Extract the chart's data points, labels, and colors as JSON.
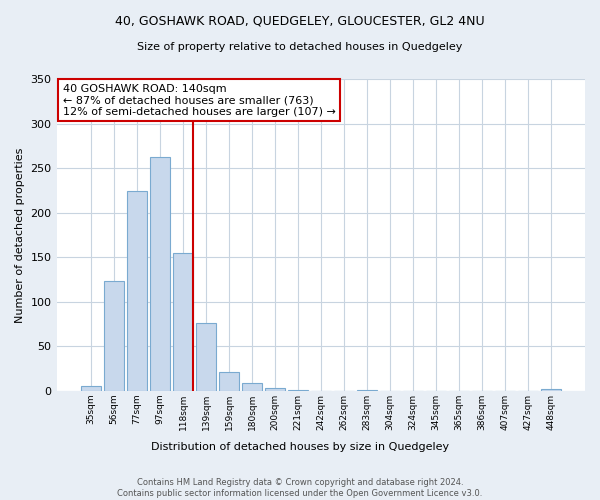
{
  "title": "40, GOSHAWK ROAD, QUEDGELEY, GLOUCESTER, GL2 4NU",
  "subtitle": "Size of property relative to detached houses in Quedgeley",
  "xlabel": "Distribution of detached houses by size in Quedgeley",
  "ylabel": "Number of detached properties",
  "bar_labels": [
    "35sqm",
    "56sqm",
    "77sqm",
    "97sqm",
    "118sqm",
    "139sqm",
    "159sqm",
    "180sqm",
    "200sqm",
    "221sqm",
    "242sqm",
    "262sqm",
    "283sqm",
    "304sqm",
    "324sqm",
    "345sqm",
    "365sqm",
    "386sqm",
    "407sqm",
    "427sqm",
    "448sqm"
  ],
  "bar_values": [
    6,
    123,
    224,
    262,
    155,
    76,
    21,
    9,
    3,
    1,
    0,
    0,
    1,
    0,
    0,
    0,
    0,
    0,
    0,
    0,
    2
  ],
  "bar_facecolor": "#c8d8ec",
  "bar_edgecolor": "#7aaad0",
  "vline_color": "#cc0000",
  "annotation_text": "40 GOSHAWK ROAD: 140sqm\n← 87% of detached houses are smaller (763)\n12% of semi-detached houses are larger (107) →",
  "annotation_box_facecolor": "#ffffff",
  "annotation_box_edgecolor": "#cc0000",
  "ylim": [
    0,
    350
  ],
  "yticks": [
    0,
    50,
    100,
    150,
    200,
    250,
    300,
    350
  ],
  "footer": "Contains HM Land Registry data © Crown copyright and database right 2024.\nContains public sector information licensed under the Open Government Licence v3.0.",
  "bg_color": "#e8eef5",
  "plot_bg_color": "#ffffff",
  "grid_color": "#c8d4e0"
}
